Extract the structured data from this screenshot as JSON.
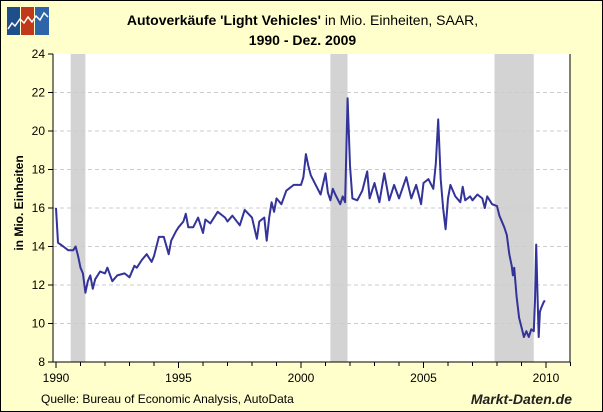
{
  "chart_data": {
    "type": "line",
    "title_bold": "Autoverkäufe 'Light Vehicles'",
    "title_rest": " in Mio. Einheiten, SAAR,",
    "subtitle": "1990 - Dez. 2009",
    "xlabel": "",
    "ylabel": "in Mio. Einheiten",
    "xlim": [
      1990,
      2011
    ],
    "ylim": [
      8,
      24
    ],
    "x_ticks": [
      "1990",
      "1995",
      "2000",
      "2005",
      "2010"
    ],
    "y_ticks": [
      "8",
      "10",
      "12",
      "14",
      "16",
      "18",
      "20",
      "22",
      "24"
    ],
    "grid": true,
    "line_color": "#333399",
    "recession_color": "#D3D3D3",
    "recessions": [
      [
        1990.6,
        1991.2
      ],
      [
        2001.2,
        2001.9
      ],
      [
        2007.9,
        2009.5
      ]
    ],
    "series": [
      {
        "name": "Light Vehicles",
        "points": [
          [
            1990.0,
            16.0
          ],
          [
            1990.08,
            14.2
          ],
          [
            1990.3,
            14.0
          ],
          [
            1990.5,
            13.8
          ],
          [
            1990.7,
            13.8
          ],
          [
            1990.8,
            14.0
          ],
          [
            1990.9,
            13.5
          ],
          [
            1991.0,
            12.9
          ],
          [
            1991.1,
            12.6
          ],
          [
            1991.2,
            11.6
          ],
          [
            1991.3,
            12.2
          ],
          [
            1991.4,
            12.5
          ],
          [
            1991.5,
            11.8
          ],
          [
            1991.6,
            12.3
          ],
          [
            1991.8,
            12.7
          ],
          [
            1992.0,
            12.6
          ],
          [
            1992.1,
            12.9
          ],
          [
            1992.3,
            12.2
          ],
          [
            1992.5,
            12.5
          ],
          [
            1992.8,
            12.6
          ],
          [
            1993.0,
            12.4
          ],
          [
            1993.2,
            13.0
          ],
          [
            1993.3,
            12.9
          ],
          [
            1993.5,
            13.3
          ],
          [
            1993.7,
            13.6
          ],
          [
            1993.9,
            13.2
          ],
          [
            1994.0,
            13.5
          ],
          [
            1994.2,
            14.5
          ],
          [
            1994.4,
            14.5
          ],
          [
            1994.6,
            13.6
          ],
          [
            1994.7,
            14.3
          ],
          [
            1994.9,
            14.8
          ],
          [
            1995.0,
            15.0
          ],
          [
            1995.2,
            15.3
          ],
          [
            1995.3,
            15.7
          ],
          [
            1995.4,
            15.0
          ],
          [
            1995.6,
            15.0
          ],
          [
            1995.8,
            15.5
          ],
          [
            1996.0,
            14.7
          ],
          [
            1996.1,
            15.4
          ],
          [
            1996.3,
            15.2
          ],
          [
            1996.6,
            15.8
          ],
          [
            1996.9,
            15.5
          ],
          [
            1997.0,
            15.3
          ],
          [
            1997.2,
            15.6
          ],
          [
            1997.5,
            15.1
          ],
          [
            1997.7,
            15.9
          ],
          [
            1998.0,
            15.5
          ],
          [
            1998.2,
            14.4
          ],
          [
            1998.3,
            15.3
          ],
          [
            1998.5,
            15.5
          ],
          [
            1998.6,
            14.3
          ],
          [
            1998.7,
            15.5
          ],
          [
            1998.8,
            16.3
          ],
          [
            1998.9,
            15.8
          ],
          [
            1999.0,
            16.5
          ],
          [
            1999.2,
            16.2
          ],
          [
            1999.4,
            16.9
          ],
          [
            1999.7,
            17.2
          ],
          [
            2000.0,
            17.2
          ],
          [
            2000.1,
            17.6
          ],
          [
            2000.2,
            18.8
          ],
          [
            2000.3,
            18.2
          ],
          [
            2000.4,
            17.7
          ],
          [
            2000.6,
            17.2
          ],
          [
            2000.8,
            16.7
          ],
          [
            2001.0,
            17.8
          ],
          [
            2001.1,
            16.8
          ],
          [
            2001.2,
            16.4
          ],
          [
            2001.3,
            17.0
          ],
          [
            2001.4,
            16.7
          ],
          [
            2001.6,
            16.2
          ],
          [
            2001.7,
            16.6
          ],
          [
            2001.8,
            16.3
          ],
          [
            2001.9,
            21.7
          ],
          [
            2002.0,
            18.2
          ],
          [
            2002.1,
            16.5
          ],
          [
            2002.3,
            16.4
          ],
          [
            2002.5,
            16.9
          ],
          [
            2002.7,
            17.9
          ],
          [
            2002.8,
            16.5
          ],
          [
            2003.0,
            17.3
          ],
          [
            2003.2,
            16.3
          ],
          [
            2003.4,
            17.8
          ],
          [
            2003.6,
            16.4
          ],
          [
            2003.8,
            17.2
          ],
          [
            2004.0,
            16.5
          ],
          [
            2004.3,
            17.6
          ],
          [
            2004.5,
            16.5
          ],
          [
            2004.7,
            17.2
          ],
          [
            2004.9,
            16.2
          ],
          [
            2005.0,
            17.3
          ],
          [
            2005.2,
            17.5
          ],
          [
            2005.4,
            17.0
          ],
          [
            2005.5,
            18.3
          ],
          [
            2005.6,
            20.6
          ],
          [
            2005.7,
            17.5
          ],
          [
            2005.8,
            16.0
          ],
          [
            2005.9,
            14.9
          ],
          [
            2006.0,
            16.5
          ],
          [
            2006.1,
            17.2
          ],
          [
            2006.3,
            16.6
          ],
          [
            2006.5,
            16.3
          ],
          [
            2006.6,
            17.1
          ],
          [
            2006.7,
            16.4
          ],
          [
            2006.9,
            16.6
          ],
          [
            2007.0,
            16.4
          ],
          [
            2007.2,
            16.7
          ],
          [
            2007.4,
            16.5
          ],
          [
            2007.5,
            16.0
          ],
          [
            2007.6,
            16.6
          ],
          [
            2007.8,
            16.2
          ],
          [
            2008.0,
            16.1
          ],
          [
            2008.1,
            15.6
          ],
          [
            2008.3,
            15.0
          ],
          [
            2008.4,
            14.6
          ],
          [
            2008.5,
            13.6
          ],
          [
            2008.6,
            13.0
          ],
          [
            2008.65,
            12.5
          ],
          [
            2008.7,
            12.9
          ],
          [
            2008.8,
            11.4
          ],
          [
            2008.9,
            10.3
          ],
          [
            2009.0,
            9.8
          ],
          [
            2009.1,
            9.3
          ],
          [
            2009.2,
            9.6
          ],
          [
            2009.3,
            9.3
          ],
          [
            2009.4,
            9.7
          ],
          [
            2009.5,
            9.6
          ],
          [
            2009.55,
            11.2
          ],
          [
            2009.6,
            14.1
          ],
          [
            2009.65,
            11.7
          ],
          [
            2009.7,
            9.3
          ],
          [
            2009.75,
            10.6
          ],
          [
            2009.8,
            10.8
          ],
          [
            2009.9,
            11.1
          ],
          [
            2009.95,
            11.2
          ]
        ]
      }
    ],
    "source": "Quelle: Bureau of Economic Analysis, AutoData",
    "brand": "Markt-Daten.de"
  }
}
